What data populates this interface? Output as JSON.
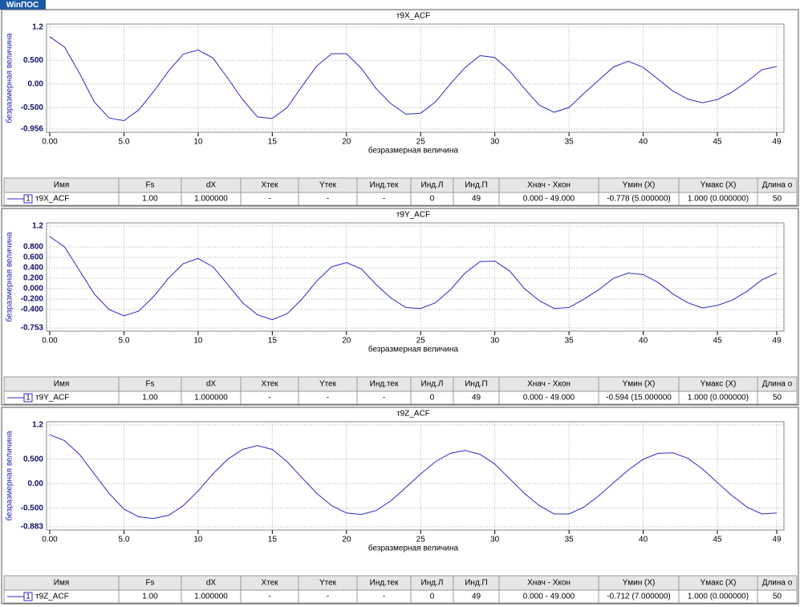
{
  "logo": "WinПОС",
  "chart_data": [
    {
      "type": "line",
      "title": "т9X_ACF",
      "x_label": "безразмерная величина",
      "y_label": "безразмерная величина",
      "x": [
        0,
        1,
        2,
        3,
        4,
        5,
        6,
        7,
        8,
        9,
        10,
        11,
        12,
        13,
        14,
        15,
        16,
        17,
        18,
        19,
        20,
        21,
        22,
        23,
        24,
        25,
        26,
        27,
        28,
        29,
        30,
        31,
        32,
        33,
        34,
        35,
        36,
        37,
        38,
        39,
        40,
        41,
        42,
        43,
        44,
        45,
        46,
        47,
        48,
        49
      ],
      "series": [
        {
          "name": "т9X_ACF",
          "color": "#2a2ac8",
          "values": [
            1.0,
            0.78,
            0.23,
            -0.38,
            -0.72,
            -0.778,
            -0.55,
            -0.16,
            0.27,
            0.63,
            0.72,
            0.55,
            0.12,
            -0.33,
            -0.7,
            -0.73,
            -0.5,
            -0.05,
            0.38,
            0.64,
            0.64,
            0.33,
            -0.1,
            -0.42,
            -0.64,
            -0.62,
            -0.38,
            0.0,
            0.35,
            0.6,
            0.56,
            0.28,
            -0.1,
            -0.45,
            -0.6,
            -0.5,
            -0.2,
            0.08,
            0.36,
            0.48,
            0.35,
            0.1,
            -0.15,
            -0.32,
            -0.4,
            -0.33,
            -0.17,
            0.05,
            0.3,
            0.37
          ]
        }
      ],
      "xlim": [
        0,
        49
      ],
      "xticks": [
        {
          "value": 0,
          "label": "0.00"
        },
        {
          "value": 5,
          "label": "5.0"
        },
        10,
        15,
        20,
        25,
        30,
        35,
        40,
        45,
        49
      ],
      "ylim": [
        -0.956,
        1.2
      ],
      "yticks": [
        -0.956,
        {
          "value": -0.5,
          "label": "-0.500"
        },
        {
          "value": 0,
          "label": "0.00"
        },
        {
          "value": 0.5,
          "label": "0.500"
        },
        1.2
      ],
      "grid": true
    },
    {
      "type": "line",
      "title": "т9Y_ACF",
      "x_label": "безразмерная величина",
      "y_label": "безразмерная величина",
      "x": [
        0,
        1,
        2,
        3,
        4,
        5,
        6,
        7,
        8,
        9,
        10,
        11,
        12,
        13,
        14,
        15,
        16,
        17,
        18,
        19,
        20,
        21,
        22,
        23,
        24,
        25,
        26,
        27,
        28,
        29,
        30,
        31,
        32,
        33,
        34,
        35,
        36,
        37,
        38,
        39,
        40,
        41,
        42,
        43,
        44,
        45,
        46,
        47,
        48,
        49
      ],
      "series": [
        {
          "name": "т9Y_ACF",
          "color": "#2a2ac8",
          "values": [
            1.0,
            0.8,
            0.35,
            -0.1,
            -0.4,
            -0.52,
            -0.43,
            -0.15,
            0.2,
            0.48,
            0.58,
            0.42,
            0.08,
            -0.27,
            -0.5,
            -0.594,
            -0.48,
            -0.2,
            0.15,
            0.42,
            0.5,
            0.38,
            0.08,
            -0.18,
            -0.36,
            -0.38,
            -0.27,
            -0.02,
            0.3,
            0.52,
            0.53,
            0.34,
            0.0,
            -0.23,
            -0.38,
            -0.36,
            -0.2,
            -0.02,
            0.2,
            0.3,
            0.27,
            0.12,
            -0.1,
            -0.27,
            -0.37,
            -0.32,
            -0.22,
            -0.05,
            0.17,
            0.3
          ]
        }
      ],
      "xlim": [
        0,
        49
      ],
      "xticks": [
        {
          "value": 0,
          "label": "0.00"
        },
        {
          "value": 5,
          "label": "5.0"
        },
        10,
        15,
        20,
        25,
        30,
        35,
        40,
        45,
        49
      ],
      "ylim": [
        -0.753,
        1.2
      ],
      "yticks": [
        -0.753,
        {
          "value": -0.4,
          "label": "-0.400"
        },
        {
          "value": -0.2,
          "label": "-0.200"
        },
        {
          "value": 0,
          "label": "0.000"
        },
        {
          "value": 0.2,
          "label": "0.200"
        },
        {
          "value": 0.4,
          "label": "0.400"
        },
        {
          "value": 0.6,
          "label": "0.600"
        },
        {
          "value": 0.8,
          "label": "0.800"
        },
        1.2
      ],
      "grid": true
    },
    {
      "type": "line",
      "title": "т9Z_ACF",
      "x_label": "безразмерная величина",
      "y_label": "безразмерная величина",
      "x": [
        0,
        1,
        2,
        3,
        4,
        5,
        6,
        7,
        8,
        9,
        10,
        11,
        12,
        13,
        14,
        15,
        16,
        17,
        18,
        19,
        20,
        21,
        22,
        23,
        24,
        25,
        26,
        27,
        28,
        29,
        30,
        31,
        32,
        33,
        34,
        35,
        36,
        37,
        38,
        39,
        40,
        41,
        42,
        43,
        44,
        45,
        46,
        47,
        48,
        49
      ],
      "series": [
        {
          "name": "т9Z_ACF",
          "color": "#2a2ac8",
          "values": [
            1.0,
            0.88,
            0.6,
            0.2,
            -0.2,
            -0.52,
            -0.68,
            -0.712,
            -0.65,
            -0.45,
            -0.15,
            0.2,
            0.5,
            0.7,
            0.78,
            0.7,
            0.45,
            0.12,
            -0.2,
            -0.45,
            -0.6,
            -0.63,
            -0.55,
            -0.35,
            -0.08,
            0.2,
            0.45,
            0.62,
            0.68,
            0.6,
            0.4,
            0.1,
            -0.2,
            -0.45,
            -0.62,
            -0.62,
            -0.48,
            -0.25,
            0.02,
            0.28,
            0.5,
            0.62,
            0.63,
            0.52,
            0.3,
            0.02,
            -0.25,
            -0.48,
            -0.62,
            -0.6
          ]
        }
      ],
      "xlim": [
        0,
        49
      ],
      "xticks": [
        {
          "value": 0,
          "label": "0.00"
        },
        {
          "value": 5,
          "label": "5.0"
        },
        10,
        15,
        20,
        25,
        30,
        35,
        40,
        45,
        49
      ],
      "ylim": [
        -0.883,
        1.2
      ],
      "yticks": [
        -0.883,
        {
          "value": -0.5,
          "label": "-0.500"
        },
        {
          "value": 0,
          "label": "0.00"
        },
        {
          "value": 0.5,
          "label": "0.500"
        },
        1.2
      ],
      "grid": true
    }
  ],
  "tables": [
    {
      "columns": [
        "Имя",
        "Fs",
        "dX",
        "Xтек",
        "Yтек",
        "Инд.тек",
        "Инд.Л",
        "Инд.П",
        "Xнач - Xкон",
        "Yмин (X)",
        "Yмакс (X)",
        "Длина о"
      ],
      "rows": [
        {
          "index": "1",
          "cells": [
            "1.00",
            "1.000000",
            "-",
            "-",
            "-",
            "0",
            "49",
            "0.000 - 49.000",
            "-0.778 (5.000000)",
            "1.000 (0.000000)",
            "50"
          ]
        }
      ]
    },
    {
      "columns": [
        "Имя",
        "Fs",
        "dX",
        "Xтек",
        "Yтек",
        "Инд.тек",
        "Инд.Л",
        "Инд.П",
        "Xнач - Xкон",
        "Yмин (X)",
        "Yмакс (X)",
        "Длина о"
      ],
      "rows": [
        {
          "index": "1",
          "cells": [
            "1.00",
            "1.000000",
            "-",
            "-",
            "-",
            "0",
            "49",
            "0.000 - 49.000",
            "-0.594 (15.000000",
            "1.000 (0.000000)",
            "50"
          ]
        }
      ]
    },
    {
      "columns": [
        "Имя",
        "Fs",
        "dX",
        "Xтек",
        "Yтек",
        "Инд.тек",
        "Инд.Л",
        "Инд.П",
        "Xнач - Xкон",
        "Yмин (X)",
        "Yмакс (X)",
        "Длина о"
      ],
      "rows": [
        {
          "index": "1",
          "cells": [
            "1.00",
            "1.000000",
            "-",
            "-",
            "-",
            "0",
            "49",
            "0.000 - 49.000",
            "-0.712 (7.000000)",
            "1.000 (0.000000)",
            "50"
          ]
        }
      ]
    }
  ]
}
